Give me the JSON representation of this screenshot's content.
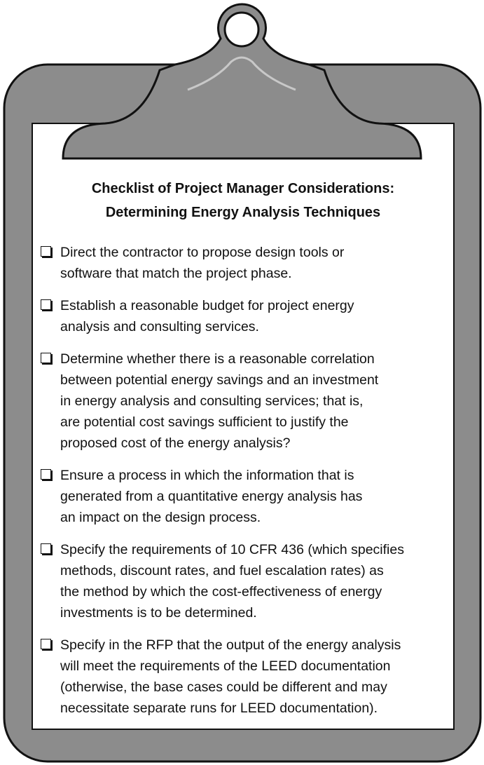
{
  "title": {
    "lines": [
      "Checklist of Project Manager Considerations:",
      "Determining Energy Analysis Techniques"
    ]
  },
  "items": [
    {
      "lines": [
        "Direct the contractor to propose design tools or",
        "software that match the project phase."
      ]
    },
    {
      "lines": [
        "Establish a reasonable budget for project energy",
        "analysis and consulting services."
      ]
    },
    {
      "lines": [
        "Determine whether there is a reasonable correlation",
        "between potential energy savings and an investment",
        "in energy analysis and consulting services; that is,",
        "are potential cost savings sufficient to justify the",
        "proposed cost of the energy analysis?"
      ]
    },
    {
      "lines": [
        "Ensure a process in which the information that is",
        "generated from a quantitative energy analysis has",
        "an impact on the design process."
      ]
    },
    {
      "lines": [
        "Specify the requirements of 10 CFR 436 (which specifies",
        "methods, discount rates, and fuel escalation rates) as",
        "the method by which the cost-effectiveness of energy",
        "investments is to be determined."
      ]
    },
    {
      "lines": [
        "Specify in the RFP that the output of the energy analysis",
        "will meet the requirements of the LEED documentation",
        "(otherwise, the base cases could be different and may",
        "necessitate separate runs for LEED documentation)."
      ]
    }
  ]
}
